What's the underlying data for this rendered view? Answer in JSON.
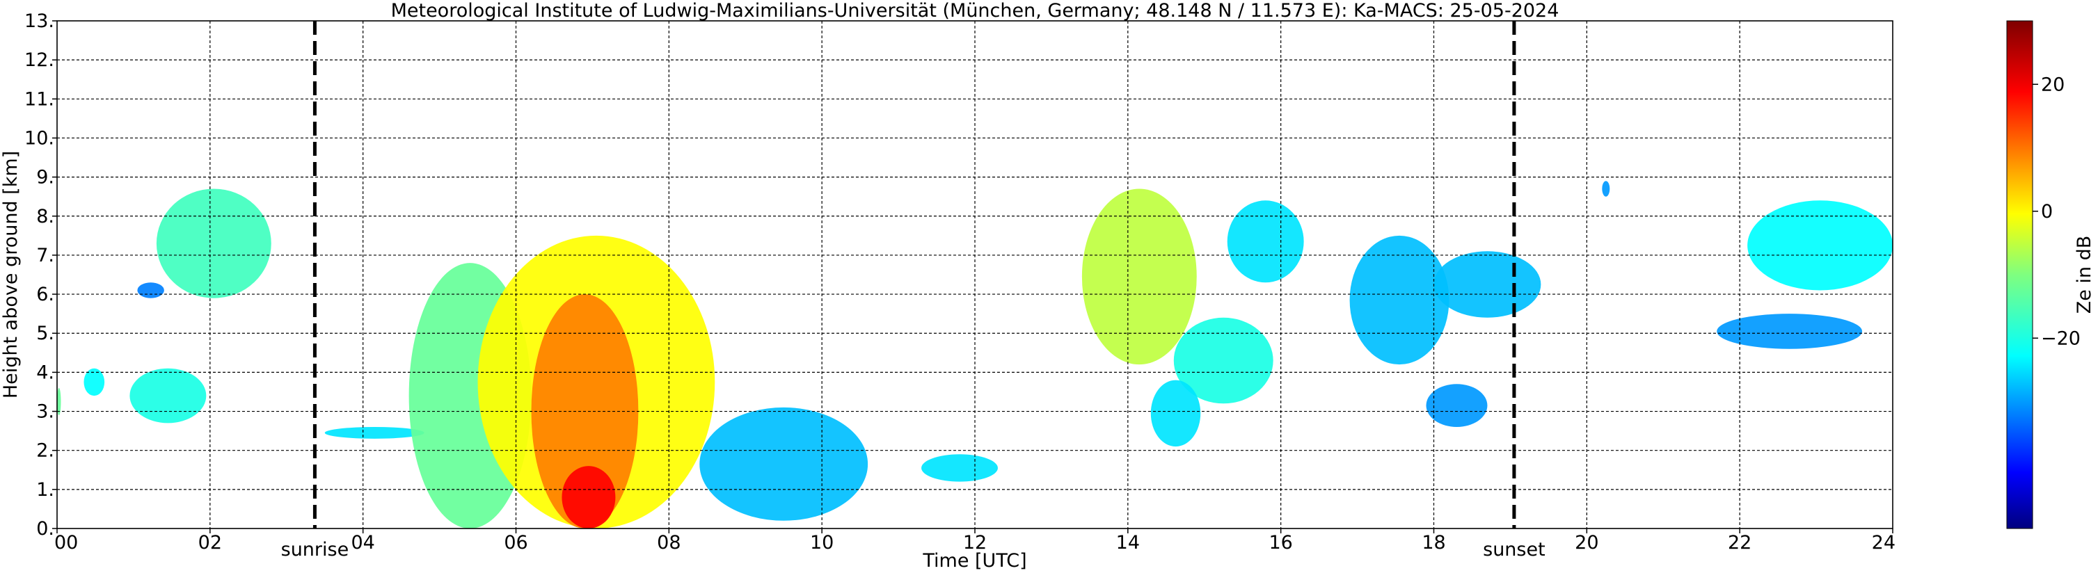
{
  "chart_data": {
    "type": "heatmap",
    "title": "Meteorological Institute of Ludwig-Maximilians-Universität (München, Germany; 48.148 N / 11.573 E):    Ka-MACS: 25-05-2024",
    "xlabel": "Time [UTC]",
    "ylabel": "Height above ground [km]",
    "colorbar_label": "Ze in dB",
    "xlim": [
      0,
      24
    ],
    "ylim": [
      0,
      13
    ],
    "x_ticks": [
      0,
      2,
      4,
      6,
      8,
      10,
      12,
      14,
      16,
      18,
      20,
      22,
      24
    ],
    "x_tick_labels": [
      "00",
      "02",
      "04",
      "06",
      "08",
      "10",
      "12",
      "14",
      "16",
      "18",
      "20",
      "22",
      "24"
    ],
    "y_ticks": [
      0,
      1,
      2,
      3,
      4,
      5,
      6,
      7,
      8,
      9,
      10,
      11,
      12,
      13
    ],
    "y_tick_labels": [
      "0.",
      "1.",
      "2.",
      "3.",
      "4.",
      "5.",
      "6.",
      "7.",
      "8.",
      "9.",
      "10.",
      "11.",
      "12.",
      "13."
    ],
    "grid": true,
    "colorbar": {
      "colormap": "jet",
      "range": [
        -50,
        30
      ],
      "ticks": [
        20,
        0,
        -20
      ],
      "tick_labels": [
        "20",
        "0",
        "−20"
      ]
    },
    "events": [
      {
        "label": "sunrise",
        "time": 3.37
      },
      {
        "label": "sunset",
        "time": 19.05
      }
    ],
    "echo_regions": [
      {
        "t": [
          0.0,
          0.05
        ],
        "h": [
          2.9,
          3.6
        ],
        "ze": -12
      },
      {
        "t": [
          0.35,
          0.62
        ],
        "h": [
          3.4,
          4.1
        ],
        "ze": -20
      },
      {
        "t": [
          0.95,
          1.95
        ],
        "h": [
          2.7,
          4.1
        ],
        "ze": -18
      },
      {
        "t": [
          1.3,
          2.8
        ],
        "h": [
          5.9,
          8.7
        ],
        "ze": -15
      },
      {
        "t": [
          1.05,
          1.4
        ],
        "h": [
          5.9,
          6.3
        ],
        "ze": -30
      },
      {
        "t": [
          3.5,
          4.8
        ],
        "h": [
          2.3,
          2.6
        ],
        "ze": -22
      },
      {
        "t": [
          4.6,
          6.2
        ],
        "h": [
          0.0,
          6.8
        ],
        "ze": -12
      },
      {
        "t": [
          5.5,
          8.6
        ],
        "h": [
          0.0,
          7.5
        ],
        "ze": 0
      },
      {
        "t": [
          6.2,
          7.6
        ],
        "h": [
          0.0,
          6.0
        ],
        "ze": 10
      },
      {
        "t": [
          6.6,
          7.3
        ],
        "h": [
          0.0,
          1.6
        ],
        "ze": 20
      },
      {
        "t": [
          8.4,
          10.6
        ],
        "h": [
          0.2,
          3.1
        ],
        "ze": -25
      },
      {
        "t": [
          11.3,
          12.3
        ],
        "h": [
          1.2,
          1.9
        ],
        "ze": -22
      },
      {
        "t": [
          13.4,
          14.9
        ],
        "h": [
          4.2,
          8.7
        ],
        "ze": -5
      },
      {
        "t": [
          14.6,
          15.9
        ],
        "h": [
          3.2,
          5.4
        ],
        "ze": -18
      },
      {
        "t": [
          14.3,
          14.95
        ],
        "h": [
          2.1,
          3.8
        ],
        "ze": -22
      },
      {
        "t": [
          15.3,
          16.3
        ],
        "h": [
          6.3,
          8.4
        ],
        "ze": -22
      },
      {
        "t": [
          16.9,
          18.2
        ],
        "h": [
          4.2,
          7.5
        ],
        "ze": -25
      },
      {
        "t": [
          18.0,
          19.4
        ],
        "h": [
          5.4,
          7.1
        ],
        "ze": -25
      },
      {
        "t": [
          17.9,
          18.7
        ],
        "h": [
          2.6,
          3.7
        ],
        "ze": -28
      },
      {
        "t": [
          20.2,
          20.3
        ],
        "h": [
          8.5,
          8.9
        ],
        "ze": -28
      },
      {
        "t": [
          21.7,
          23.6
        ],
        "h": [
          4.6,
          5.5
        ],
        "ze": -28
      },
      {
        "t": [
          22.1,
          24.0
        ],
        "h": [
          6.1,
          8.4
        ],
        "ze": -20
      }
    ]
  }
}
